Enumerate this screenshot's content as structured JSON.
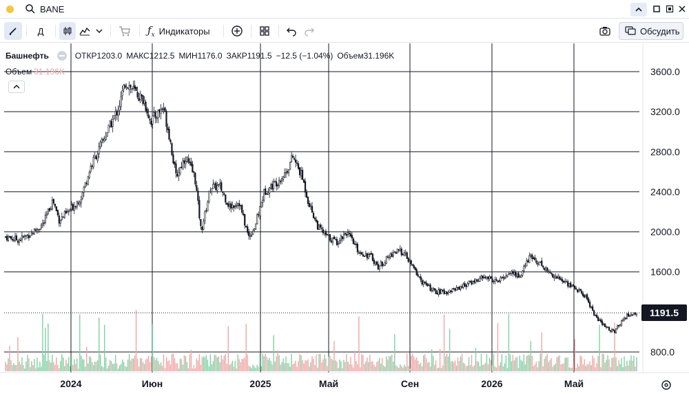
{
  "window": {
    "ticker": "BANE",
    "accent_color": "#f5c542"
  },
  "toolbar": {
    "indicators_label": "Индикаторы",
    "discuss_label": "Обсудить",
    "timeframe_label": "Д"
  },
  "legend": {
    "name": "Башнефть",
    "open_label": "ОТКР",
    "open_value": "1203.0",
    "high_label": "МАКС",
    "high_value": "1212.5",
    "low_label": "МИН",
    "low_value": "1176.0",
    "close_label": "ЗАКР",
    "close_value": "1191.5",
    "change": "−12.5 (−1.04%)",
    "volume_label": "Объем",
    "volume_value": "31.196K"
  },
  "volume_legend": {
    "label": "Объем",
    "value": "31.196K"
  },
  "chart_data": {
    "type": "candlestick",
    "y_ticks": [
      "3600.0",
      "3200.0",
      "2800.0",
      "2400.0",
      "2000.0",
      "1600.0",
      "800.0"
    ],
    "x_ticks": [
      "2024",
      "Июн",
      "2025",
      "Май",
      "Сен",
      "2026",
      "Май"
    ],
    "ylim": [
      700,
      3800
    ],
    "last_price": "1191.5",
    "close_series": [
      [
        0.0,
        1950
      ],
      [
        0.02,
        1920
      ],
      [
        0.04,
        1980
      ],
      [
        0.06,
        2080
      ],
      [
        0.075,
        2320
      ],
      [
        0.085,
        2120
      ],
      [
        0.1,
        2200
      ],
      [
        0.12,
        2350
      ],
      [
        0.135,
        2650
      ],
      [
        0.15,
        2850
      ],
      [
        0.165,
        3050
      ],
      [
        0.18,
        3250
      ],
      [
        0.19,
        3500
      ],
      [
        0.205,
        3400
      ],
      [
        0.22,
        3300
      ],
      [
        0.23,
        3100
      ],
      [
        0.25,
        3250
      ],
      [
        0.26,
        2950
      ],
      [
        0.27,
        2550
      ],
      [
        0.285,
        2750
      ],
      [
        0.3,
        2550
      ],
      [
        0.31,
        2000
      ],
      [
        0.325,
        2450
      ],
      [
        0.34,
        2450
      ],
      [
        0.355,
        2250
      ],
      [
        0.37,
        2300
      ],
      [
        0.385,
        1950
      ],
      [
        0.395,
        2050
      ],
      [
        0.41,
        2400
      ],
      [
        0.43,
        2500
      ],
      [
        0.445,
        2600
      ],
      [
        0.455,
        2750
      ],
      [
        0.47,
        2550
      ],
      [
        0.48,
        2300
      ],
      [
        0.495,
        2050
      ],
      [
        0.51,
        1950
      ],
      [
        0.525,
        1900
      ],
      [
        0.54,
        2000
      ],
      [
        0.56,
        1800
      ],
      [
        0.58,
        1750
      ],
      [
        0.59,
        1650
      ],
      [
        0.6,
        1700
      ],
      [
        0.615,
        1800
      ],
      [
        0.63,
        1800
      ],
      [
        0.645,
        1650
      ],
      [
        0.66,
        1500
      ],
      [
        0.68,
        1400
      ],
      [
        0.7,
        1400
      ],
      [
        0.72,
        1450
      ],
      [
        0.74,
        1500
      ],
      [
        0.76,
        1550
      ],
      [
        0.78,
        1500
      ],
      [
        0.8,
        1600
      ],
      [
        0.815,
        1550
      ],
      [
        0.83,
        1750
      ],
      [
        0.845,
        1700
      ],
      [
        0.86,
        1600
      ],
      [
        0.88,
        1520
      ],
      [
        0.9,
        1450
      ],
      [
        0.92,
        1350
      ],
      [
        0.935,
        1150
      ],
      [
        0.95,
        1050
      ],
      [
        0.965,
        1000
      ],
      [
        0.98,
        1150
      ],
      [
        1.0,
        1191.5
      ]
    ]
  }
}
